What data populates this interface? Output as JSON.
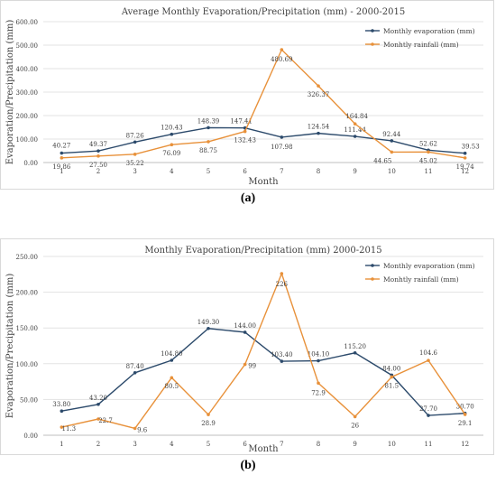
{
  "charts": [
    {
      "caption": "(a)",
      "chart_data": {
        "type": "line",
        "title": "Average Monthly Evaporation/Precipitation (mm) - 2000-2015",
        "xlabel": "Month",
        "ylabel": "Evaporation/Precipitation (mm)",
        "categories": [
          "1",
          "2",
          "3",
          "4",
          "5",
          "6",
          "7",
          "8",
          "9",
          "10",
          "11",
          "12"
        ],
        "ylim": [
          0,
          600
        ],
        "yticks": [
          "0.00",
          "100.00",
          "200.00",
          "300.00",
          "400.00",
          "500.00",
          "600.00"
        ],
        "ytick_values": [
          0,
          100,
          200,
          300,
          400,
          500,
          600
        ],
        "grid": true,
        "legend": "top-right",
        "series": [
          {
            "name": "Monthly evaporation (mm)",
            "color": "#2c4a6b",
            "values": [
              40.27,
              49.37,
              87.26,
              120.43,
              148.39,
              147.41,
              107.98,
              124.54,
              111.44,
              92.44,
              52.62,
              39.53
            ],
            "labels": [
              "40.27",
              "49.37",
              "87.26",
              "120.43",
              "148.39",
              "147.41",
              "107.98",
              "124.54",
              "111.44",
              "92.44",
              "52.62",
              "39.53"
            ]
          },
          {
            "name": "Monhtly rainfall (mm)",
            "color": "#e8913a",
            "values": [
              19.86,
              27.5,
              35.22,
              76.09,
              88.75,
              132.43,
              480.69,
              326.37,
              164.84,
              44.65,
              45.02,
              19.74
            ],
            "labels": [
              "19.86",
              "27.50",
              "35.22",
              "76.09",
              "88.75",
              "132.43",
              "480.69",
              "326.37",
              "164.84",
              "44.65",
              "45.02",
              "19.74"
            ]
          }
        ]
      }
    },
    {
      "caption": "(b)",
      "chart_data": {
        "type": "line",
        "title": "Monthly Evaporation/Precipitation (mm) 2000-2015",
        "xlabel": "Month",
        "ylabel": "Evaporation/Precipitation (mm)",
        "categories": [
          "1",
          "2",
          "3",
          "4",
          "5",
          "6",
          "7",
          "8",
          "9",
          "10",
          "11",
          "12"
        ],
        "ylim": [
          0,
          250
        ],
        "yticks": [
          "0.00",
          "50.00",
          "100.00",
          "150.00",
          "200.00",
          "250.00"
        ],
        "ytick_values": [
          0,
          50,
          100,
          150,
          200,
          250
        ],
        "grid": true,
        "legend": "top-right",
        "series": [
          {
            "name": "Monthly evaporation (mm)",
            "color": "#2c4a6b",
            "values": [
              33.8,
              43.2,
              87.4,
              104.8,
              149.3,
              144.0,
              103.4,
              104.1,
              115.2,
              84.0,
              27.7,
              30.7
            ],
            "labels": [
              "33.80",
              "43.20",
              "87.40",
              "104.80",
              "149.30",
              "144.00",
              "103.40",
              "104.10",
              "115.20",
              "84.00",
              "27.70",
              "30.70"
            ]
          },
          {
            "name": "Monhtly rainfall (mm)",
            "color": "#e8913a",
            "values": [
              11.3,
              22.7,
              9.6,
              80.5,
              28.9,
              99,
              226,
              72.9,
              26,
              81.5,
              104.6,
              29.1
            ],
            "labels": [
              "11.3",
              "22.7",
              "9.6",
              "80.5",
              "28.9",
              "99",
              "226",
              "72.9",
              "26",
              "81.5",
              "104.6",
              "29.1"
            ]
          }
        ]
      }
    }
  ]
}
